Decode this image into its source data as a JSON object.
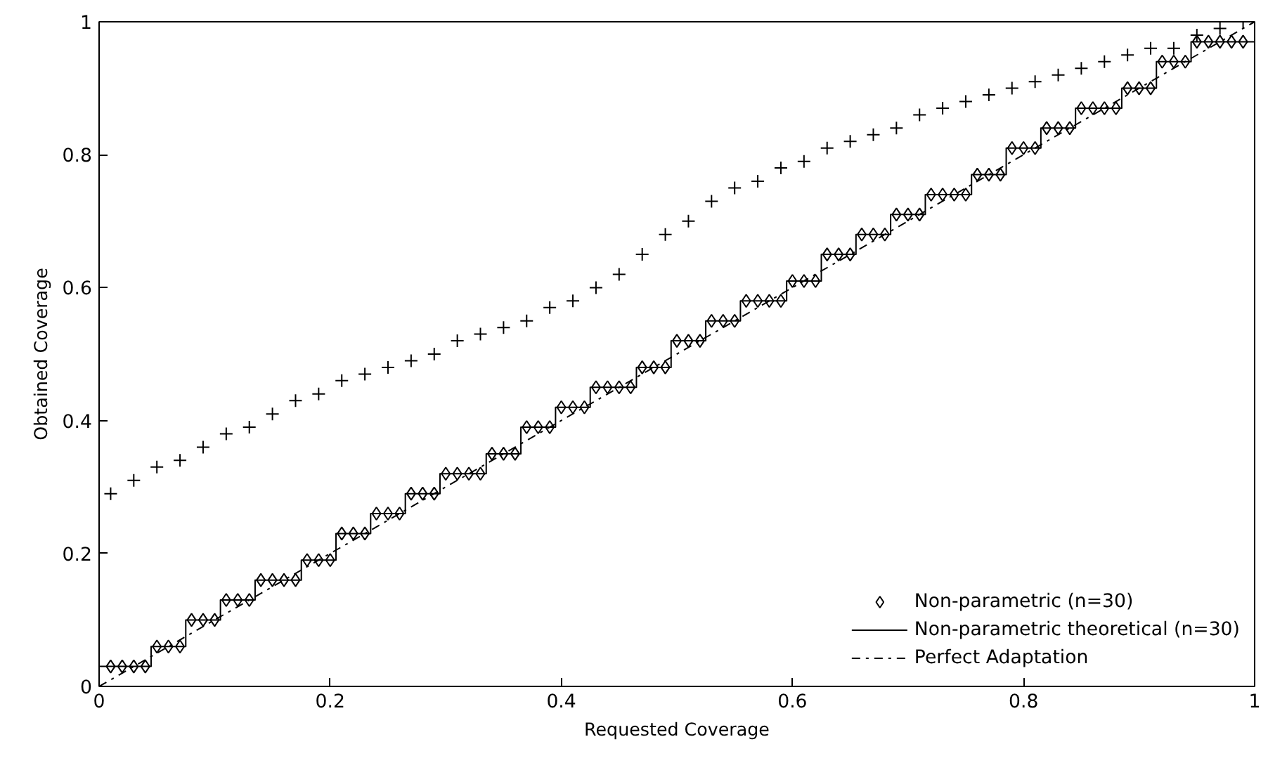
{
  "chart_data": {
    "type": "scatter",
    "xlabel": "Requested Coverage",
    "ylabel": "Obtained Coverage",
    "xlim": [
      0,
      1
    ],
    "ylim": [
      0,
      1
    ],
    "xticks": [
      0,
      0.2,
      0.4,
      0.6,
      0.8,
      1
    ],
    "yticks": [
      0,
      0.2,
      0.4,
      0.6,
      0.8,
      1
    ],
    "grid": false,
    "legend": "bottom right",
    "series": [
      {
        "marker": "cross",
        "color": "#000000",
        "x": [
          0.01,
          0.03,
          0.05,
          0.07,
          0.09,
          0.11,
          0.13,
          0.15,
          0.17,
          0.19,
          0.21,
          0.23,
          0.25,
          0.27,
          0.29,
          0.31,
          0.33,
          0.35,
          0.37,
          0.39,
          0.41,
          0.43,
          0.45,
          0.47,
          0.49,
          0.51,
          0.53,
          0.55,
          0.57,
          0.59,
          0.61,
          0.63,
          0.65,
          0.67,
          0.69,
          0.71,
          0.73,
          0.75,
          0.77,
          0.79,
          0.81,
          0.83,
          0.85,
          0.87,
          0.89,
          0.91,
          0.93,
          0.95,
          0.97,
          0.99
        ],
        "values": [
          0.29,
          0.31,
          0.33,
          0.34,
          0.36,
          0.38,
          0.39,
          0.41,
          0.43,
          0.44,
          0.46,
          0.47,
          0.48,
          0.49,
          0.5,
          0.52,
          0.53,
          0.54,
          0.55,
          0.57,
          0.58,
          0.6,
          0.62,
          0.65,
          0.68,
          0.7,
          0.73,
          0.75,
          0.76,
          0.78,
          0.79,
          0.81,
          0.82,
          0.83,
          0.84,
          0.86,
          0.87,
          0.88,
          0.89,
          0.9,
          0.91,
          0.92,
          0.93,
          0.94,
          0.95,
          0.96,
          0.96,
          0.98,
          0.99,
          1.0
        ]
      },
      {
        "name": "Non-parametric (n=30)",
        "marker": "diamond",
        "color": "#000000",
        "x": [
          0.01,
          0.02,
          0.03,
          0.04,
          0.05,
          0.06,
          0.07,
          0.08,
          0.09,
          0.1,
          0.11,
          0.12,
          0.13,
          0.14,
          0.15,
          0.16,
          0.17,
          0.18,
          0.19,
          0.2,
          0.21,
          0.22,
          0.23,
          0.24,
          0.25,
          0.26,
          0.27,
          0.28,
          0.29,
          0.3,
          0.31,
          0.32,
          0.33,
          0.34,
          0.35,
          0.36,
          0.37,
          0.38,
          0.39,
          0.4,
          0.41,
          0.42,
          0.43,
          0.44,
          0.45,
          0.46,
          0.47,
          0.48,
          0.49,
          0.5,
          0.51,
          0.52,
          0.53,
          0.54,
          0.55,
          0.56,
          0.57,
          0.58,
          0.59,
          0.6,
          0.61,
          0.62,
          0.63,
          0.64,
          0.65,
          0.66,
          0.67,
          0.68,
          0.69,
          0.7,
          0.71,
          0.72,
          0.73,
          0.74,
          0.75,
          0.76,
          0.77,
          0.78,
          0.79,
          0.8,
          0.81,
          0.82,
          0.83,
          0.84,
          0.85,
          0.86,
          0.87,
          0.88,
          0.89,
          0.9,
          0.91,
          0.92,
          0.93,
          0.94,
          0.95,
          0.96,
          0.97,
          0.98,
          0.99
        ],
        "values": [
          0.03,
          0.03,
          0.03,
          0.03,
          0.06,
          0.06,
          0.06,
          0.1,
          0.1,
          0.1,
          0.13,
          0.13,
          0.13,
          0.16,
          0.16,
          0.16,
          0.16,
          0.19,
          0.19,
          0.19,
          0.23,
          0.23,
          0.23,
          0.26,
          0.26,
          0.26,
          0.29,
          0.29,
          0.29,
          0.32,
          0.32,
          0.32,
          0.32,
          0.35,
          0.35,
          0.35,
          0.39,
          0.39,
          0.39,
          0.42,
          0.42,
          0.42,
          0.45,
          0.45,
          0.45,
          0.45,
          0.48,
          0.48,
          0.48,
          0.52,
          0.52,
          0.52,
          0.55,
          0.55,
          0.55,
          0.58,
          0.58,
          0.58,
          0.58,
          0.61,
          0.61,
          0.61,
          0.65,
          0.65,
          0.65,
          0.68,
          0.68,
          0.68,
          0.71,
          0.71,
          0.71,
          0.74,
          0.74,
          0.74,
          0.74,
          0.77,
          0.77,
          0.77,
          0.81,
          0.81,
          0.81,
          0.84,
          0.84,
          0.84,
          0.87,
          0.87,
          0.87,
          0.87,
          0.9,
          0.9,
          0.9,
          0.94,
          0.94,
          0.94,
          0.97,
          0.97,
          0.97,
          0.97,
          0.97
        ]
      },
      {
        "type": "step",
        "name": "Non-parametric theoretical (n=30)",
        "line_style": "solid",
        "color": "#000000",
        "x": [
          0,
          0.045,
          0.075,
          0.105,
          0.135,
          0.175,
          0.205,
          0.235,
          0.265,
          0.295,
          0.335,
          0.365,
          0.395,
          0.425,
          0.465,
          0.495,
          0.525,
          0.555,
          0.595,
          0.625,
          0.655,
          0.685,
          0.715,
          0.755,
          0.785,
          0.815,
          0.845,
          0.885,
          0.915,
          0.945,
          1
        ],
        "values": [
          0.03,
          0.06,
          0.1,
          0.13,
          0.16,
          0.19,
          0.23,
          0.26,
          0.29,
          0.32,
          0.35,
          0.39,
          0.42,
          0.45,
          0.48,
          0.52,
          0.55,
          0.58,
          0.61,
          0.65,
          0.68,
          0.71,
          0.74,
          0.77,
          0.81,
          0.84,
          0.87,
          0.9,
          0.94,
          0.97,
          0.97
        ]
      },
      {
        "type": "line",
        "name": "Perfect Adaptation",
        "line_style": "dashdot",
        "color": "#000000",
        "x": [
          0,
          1
        ],
        "values": [
          0,
          1
        ]
      }
    ]
  }
}
